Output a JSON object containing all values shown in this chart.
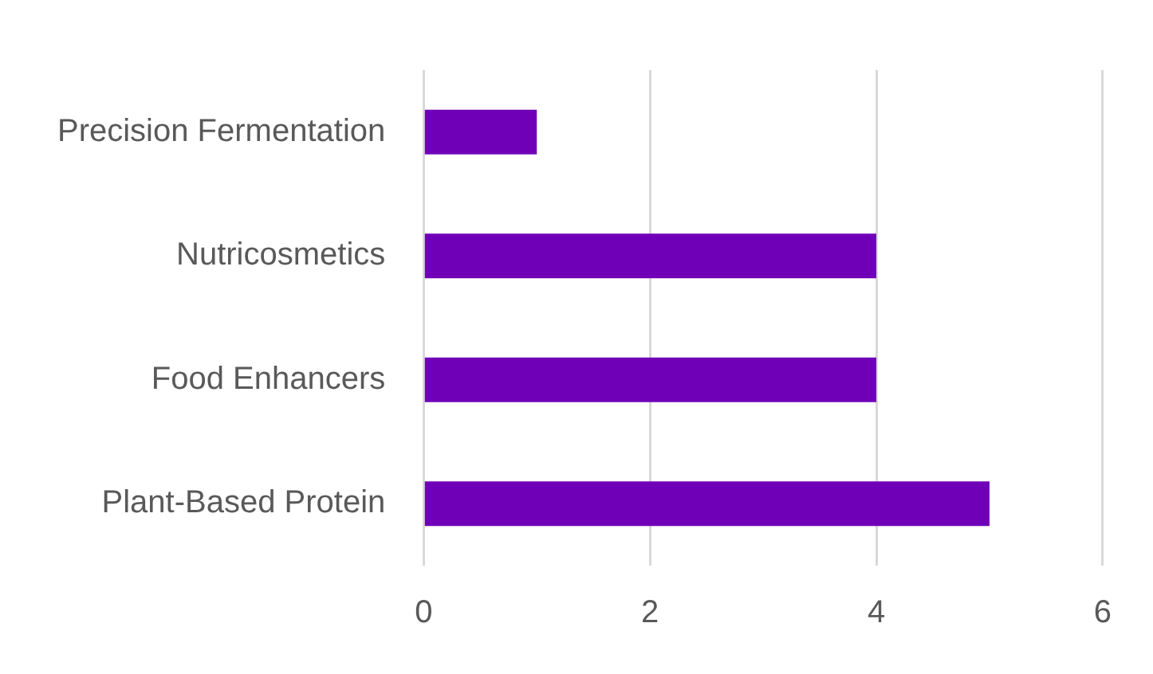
{
  "chart_data": {
    "type": "bar",
    "orientation": "horizontal",
    "categories": [
      "Precision Fermentation",
      "Nutricosmetics",
      "Food Enhancers",
      "Plant-Based Protein"
    ],
    "values": [
      1,
      4,
      4,
      5
    ],
    "color": "#7000b8",
    "xlim": [
      0,
      6
    ],
    "xticks": [
      0,
      2,
      4,
      6
    ],
    "grid": "x"
  }
}
